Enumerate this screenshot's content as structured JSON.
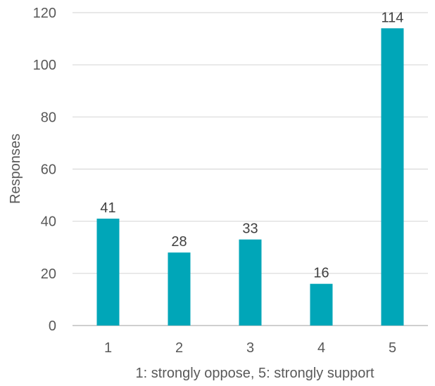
{
  "chart_data": {
    "type": "bar",
    "title": "",
    "xlabel": "1: strongly oppose, 5: strongly support",
    "ylabel": "Responses",
    "categories": [
      "1",
      "2",
      "3",
      "4",
      "5"
    ],
    "values": [
      41,
      28,
      33,
      16,
      114
    ],
    "ylim": [
      0,
      120
    ],
    "yticks": [
      "0",
      "20",
      "40",
      "60",
      "80",
      "100",
      "120"
    ],
    "grid": true,
    "legend": "none",
    "bar_color": "#00a6b8"
  }
}
